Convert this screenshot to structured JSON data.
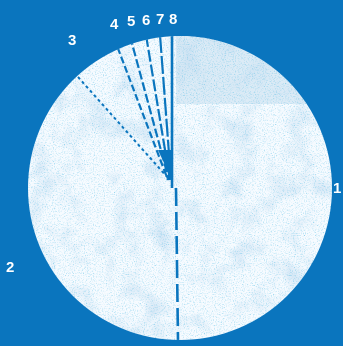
{
  "labels": {
    "one": "1",
    "two": "2",
    "three": "3",
    "top": [
      "4",
      "5",
      "6",
      "7",
      "8"
    ]
  },
  "colors": {
    "background": "#0a75be",
    "field_light": "#f7fbff",
    "field_speckle": "#cfe2f3",
    "line": "#0a75be"
  }
}
